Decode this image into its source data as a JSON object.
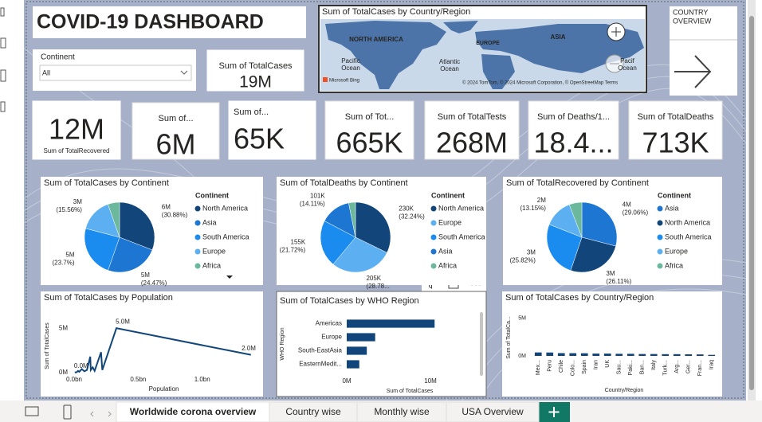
{
  "title": "COVID-19 DASHBOARD",
  "slicer": {
    "label": "Continent",
    "value": "All"
  },
  "cards": [
    {
      "label": "Sum of TotalCases",
      "value": "19M"
    },
    {
      "label": "Sum of TotalRecovered",
      "value": "12M"
    },
    {
      "label": "Sum of...",
      "value": "6M"
    },
    {
      "label": "Sum of...",
      "value": "65K"
    },
    {
      "label": "Sum of Tot...",
      "value": "665K"
    },
    {
      "label": "Sum of TotalTests",
      "value": "268M"
    },
    {
      "label": "Sum of Deaths/1...",
      "value": "18.4..."
    },
    {
      "label": "Sum of TotalDeaths",
      "value": "713K"
    }
  ],
  "map": {
    "title": "Sum of TotalCases by Country/Region",
    "labels": [
      "NORTH AMERICA",
      "EUROPE",
      "ASIA",
      "Pacific",
      "Ocean",
      "Atlantic",
      "Ocean",
      "Pacif",
      "Ocean"
    ],
    "brand": "Microsoft Bing",
    "credit": "© 2024 TomTom, © 2024 Microsoft Corporation, © OpenStreetMap Terms"
  },
  "button": {
    "lines": [
      "COUNTRY",
      "OVERVIEW"
    ]
  },
  "chart_data": [
    {
      "type": "pie",
      "title": "Sum of TotalCases by Continent",
      "legend_title": "Continent",
      "categories": [
        "North America",
        "Asia",
        "South America",
        "Europe",
        "Africa"
      ],
      "colors": [
        "#12467b",
        "#1d76d2",
        "#1a8cf0",
        "#5cb0f2",
        "#6bb89d"
      ],
      "values": [
        6000000,
        4750000,
        4600000,
        3020000,
        1050000
      ],
      "value_labels": [
        "6M",
        "5M",
        "5M",
        "3M",
        null
      ],
      "percents": [
        30.88,
        24.47,
        23.7,
        15.56,
        5.39
      ],
      "percent_labels": [
        "(30.88%)",
        "(24.47%)",
        "(23.7%)",
        "(15.56%)",
        null
      ]
    },
    {
      "type": "pie",
      "title": "Sum of TotalDeaths by Continent",
      "legend_title": "Continent",
      "categories": [
        "North America",
        "Europe",
        "South America",
        "Asia",
        "Africa"
      ],
      "colors": [
        "#12467b",
        "#5cb0f2",
        "#1a8cf0",
        "#1d76d2",
        "#6bb89d"
      ],
      "values": [
        230000,
        205000,
        155000,
        101000,
        22000
      ],
      "value_labels": [
        "230K",
        "205K",
        "155K",
        "101K",
        null
      ],
      "percents": [
        32.24,
        28.78,
        21.72,
        14.11,
        3.15
      ],
      "percent_labels": [
        "(32.24%)",
        "(28.78...",
        "(21.72%)",
        "(14.11%)",
        null
      ]
    },
    {
      "type": "pie",
      "title": "Sum of TotalRecovered by Continent",
      "legend_title": "Continent",
      "categories": [
        "Asia",
        "North America",
        "South America",
        "Europe",
        "Africa"
      ],
      "colors": [
        "#1d76d2",
        "#12467b",
        "#1a8cf0",
        "#5cb0f2",
        "#6bb89d"
      ],
      "values": [
        3630000,
        3260000,
        3230000,
        1640000,
        730000
      ],
      "value_labels": [
        "4M",
        "3M",
        "3M",
        "2M",
        null
      ],
      "percents": [
        29.06,
        26.11,
        25.82,
        13.15,
        5.86
      ],
      "percent_labels": [
        "(29.06%)",
        "(26.11%)",
        "(25.82%)",
        "(13.15%)",
        null
      ]
    },
    {
      "type": "line",
      "title": "Sum of TotalCases by Population",
      "x_label": "Population",
      "y_label": "Sum of TotalCases",
      "x": [
        0.005,
        0.02,
        0.03,
        0.04,
        0.06,
        0.08,
        0.1,
        0.126,
        0.13,
        0.145,
        0.16,
        0.21,
        0.22,
        0.33,
        1.38
      ],
      "values": [
        20000,
        50000,
        200000,
        100000,
        400000,
        150000,
        300000,
        1800000,
        300000,
        600000,
        200000,
        2300000,
        300000,
        5000000,
        2000000
      ],
      "value_labels": [
        "0.0M",
        null,
        null,
        null,
        null,
        null,
        null,
        null,
        null,
        null,
        null,
        null,
        null,
        "5.0M",
        "2.0M"
      ],
      "color": "#12467b",
      "xlim": [
        0,
        1.4
      ],
      "xticks": [
        {
          "value": 0,
          "label": "0.0bn"
        },
        {
          "value": 0.5,
          "label": "0.5bn"
        },
        {
          "value": 1,
          "label": "1.0bn"
        }
      ],
      "ylim": [
        0,
        6000000
      ],
      "yticks": [
        {
          "value": 0,
          "label": "0M"
        },
        {
          "value": 5000000,
          "label": "5M"
        }
      ]
    },
    {
      "type": "hbar",
      "title": "Sum of TotalCases by WHO Region",
      "x_label": "Sum of TotalCases",
      "y_label": "WHO Region",
      "categories": [
        "Americas",
        "Europe",
        "South-EastAsia",
        "EasternMedit..."
      ],
      "values": [
        10500000,
        3400000,
        2400000,
        1500000
      ],
      "color": "#12467b",
      "xlim": [
        0,
        12000000
      ],
      "xticks": [
        {
          "value": 0,
          "label": "0M"
        },
        {
          "value": 10000000,
          "label": "10M"
        }
      ]
    },
    {
      "type": "bar",
      "title": "Sum of TotalCases by Country/Region",
      "x_label": "Country/Region",
      "y_label": "Sum of TotalCa...",
      "categories": [
        "Mex...",
        "Peru",
        "Chile",
        "Colo...",
        "Spain",
        "Iran",
        "UK",
        "Sau...",
        "Paki...",
        "Ban...",
        "Italy",
        "Turk...",
        "Arg...",
        "Ger...",
        "Fran...",
        "Iraq"
      ],
      "values": [
        460000,
        450000,
        370000,
        360000,
        350000,
        310000,
        310000,
        280000,
        280000,
        250000,
        250000,
        230000,
        230000,
        210000,
        200000,
        140000
      ],
      "color": "#12467b",
      "ylim": [
        0,
        6000000
      ],
      "yticks": [
        {
          "value": 0,
          "label": "0M"
        },
        {
          "value": 5000000,
          "label": "5M"
        }
      ]
    }
  ],
  "tabs": [
    "Worldwide corona overview",
    "Country wise",
    "Monthly wise",
    "USA Overview"
  ]
}
